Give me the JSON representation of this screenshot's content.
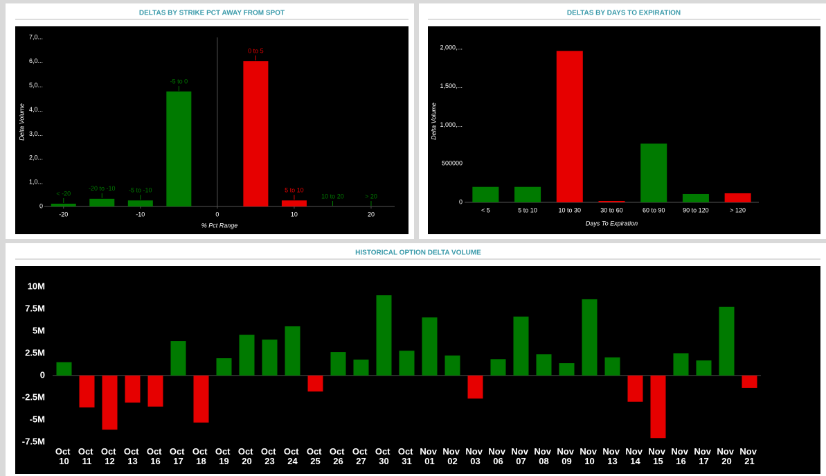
{
  "chart_data": [
    {
      "type": "bar",
      "title": "DELTAS BY STRIKE PCT AWAY FROM SPOT",
      "categories": [
        "< -20",
        "-20 to -10",
        "-5 to -10",
        "-5 to 0",
        "0 to 5",
        "5 to 10",
        "10 to 20",
        "> 20"
      ],
      "x": [
        -20,
        -15,
        -10,
        -5,
        5,
        10,
        15,
        20
      ],
      "values": [
        115000,
        320000,
        250000,
        4760000,
        6020000,
        250000,
        0,
        0
      ],
      "colors": [
        "#007a00",
        "#007a00",
        "#007a00",
        "#007a00",
        "#e60000",
        "#e60000",
        "#007a00",
        "#007a00"
      ],
      "xlim": [
        -22.5,
        25
      ],
      "xticks": [
        -20,
        -10,
        0,
        10,
        20
      ],
      "ylim": [
        0,
        7000000
      ],
      "yticks": [
        0,
        {
          "value": 1000000,
          "label": "1,0..."
        },
        {
          "value": 2000000,
          "label": "2,0..."
        },
        {
          "value": 3000000,
          "label": "3,0..."
        },
        {
          "value": 4000000,
          "label": "4,0..."
        },
        {
          "value": 5000000,
          "label": "5,0..."
        },
        {
          "value": 6000000,
          "label": "6,0..."
        },
        {
          "value": 7000000,
          "label": "7,0..."
        }
      ],
      "xlabel": "% Pct Range",
      "ylabel": "Delta Volume"
    },
    {
      "type": "bar",
      "title": "DELTAS BY DAYS TO EXPIRATION",
      "categories": [
        "< 5",
        "5 to 10",
        "10 to 30",
        "30 to 60",
        "60 to 90",
        "90 to 120",
        "> 120"
      ],
      "values": [
        200000,
        200000,
        1960000,
        18000,
        760000,
        108000,
        117000
      ],
      "colors": [
        "#007a00",
        "#007a00",
        "#e60000",
        "#e60000",
        "#007a00",
        "#007a00",
        "#e60000"
      ],
      "ylim": [
        0,
        2100000
      ],
      "yticks": [
        0,
        500000,
        {
          "value": 1000000,
          "label": "1,000,..."
        },
        {
          "value": 1500000,
          "label": "1,500,..."
        },
        {
          "value": 2000000,
          "label": "2,000,..."
        }
      ],
      "xlabel": "Days To Expiration",
      "ylabel": "Delta Volume"
    },
    {
      "type": "bar",
      "title": "HISTORICAL OPTION DELTA VOLUME",
      "categories": [
        "Oct 10",
        "Oct 11",
        "Oct 12",
        "Oct 13",
        "Oct 16",
        "Oct 17",
        "Oct 18",
        "Oct 19",
        "Oct 20",
        "Oct 23",
        "Oct 24",
        "Oct 25",
        "Oct 26",
        "Oct 27",
        "Oct 30",
        "Oct 31",
        "Nov 01",
        "Nov 02",
        "Nov 03",
        "Nov 06",
        "Nov 07",
        "Nov 08",
        "Nov 09",
        "Nov 10",
        "Nov 13",
        "Nov 14",
        "Nov 15",
        "Nov 16",
        "Nov 17",
        "Nov 20",
        "Nov 21"
      ],
      "values": [
        1500000,
        -3600000,
        -6100000,
        -3050000,
        -3500000,
        3900000,
        -5300000,
        1950000,
        4600000,
        4050000,
        5550000,
        -1800000,
        2650000,
        1800000,
        9050000,
        2800000,
        6550000,
        2250000,
        -2600000,
        1850000,
        6650000,
        2400000,
        1400000,
        8600000,
        2050000,
        -2950000,
        -7050000,
        2500000,
        1700000,
        7750000,
        -1400000
      ],
      "positive_color": "#007a00",
      "negative_color": "#e60000",
      "ylim": [
        -7500000,
        10000000
      ],
      "yticks": [
        {
          "value": -7500000,
          "label": "-7.5M"
        },
        {
          "value": -5000000,
          "label": "-5M"
        },
        {
          "value": -2500000,
          "label": "-2.5M"
        },
        0,
        {
          "value": 2500000,
          "label": "2.5M"
        },
        {
          "value": 5000000,
          "label": "5M"
        },
        {
          "value": 7500000,
          "label": "7.5M"
        },
        {
          "value": 10000000,
          "label": "10M"
        }
      ]
    }
  ]
}
